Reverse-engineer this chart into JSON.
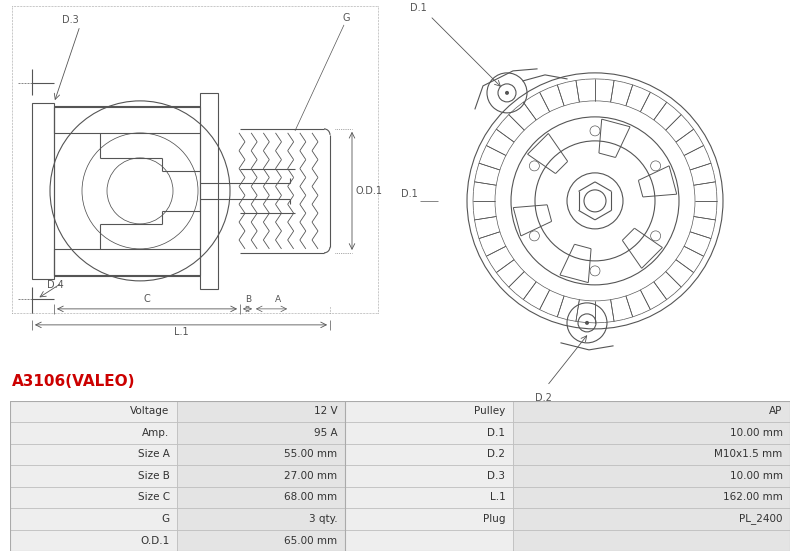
{
  "title": "A3106(VALEO)",
  "title_color": "#cc0000",
  "bg_color": "#ffffff",
  "table_data": [
    [
      "Voltage",
      "12 V",
      "Pulley",
      "AP"
    ],
    [
      "Amp.",
      "95 A",
      "D.1",
      "10.00 mm"
    ],
    [
      "Size A",
      "55.00 mm",
      "D.2",
      "M10x1.5 mm"
    ],
    [
      "Size B",
      "27.00 mm",
      "D.3",
      "10.00 mm"
    ],
    [
      "Size C",
      "68.00 mm",
      "L.1",
      "162.00 mm"
    ],
    [
      "G",
      "3 qty.",
      "Plug",
      "PL_2400"
    ],
    [
      "O.D.1",
      "65.00 mm",
      "",
      ""
    ]
  ],
  "line_color": "#555555"
}
